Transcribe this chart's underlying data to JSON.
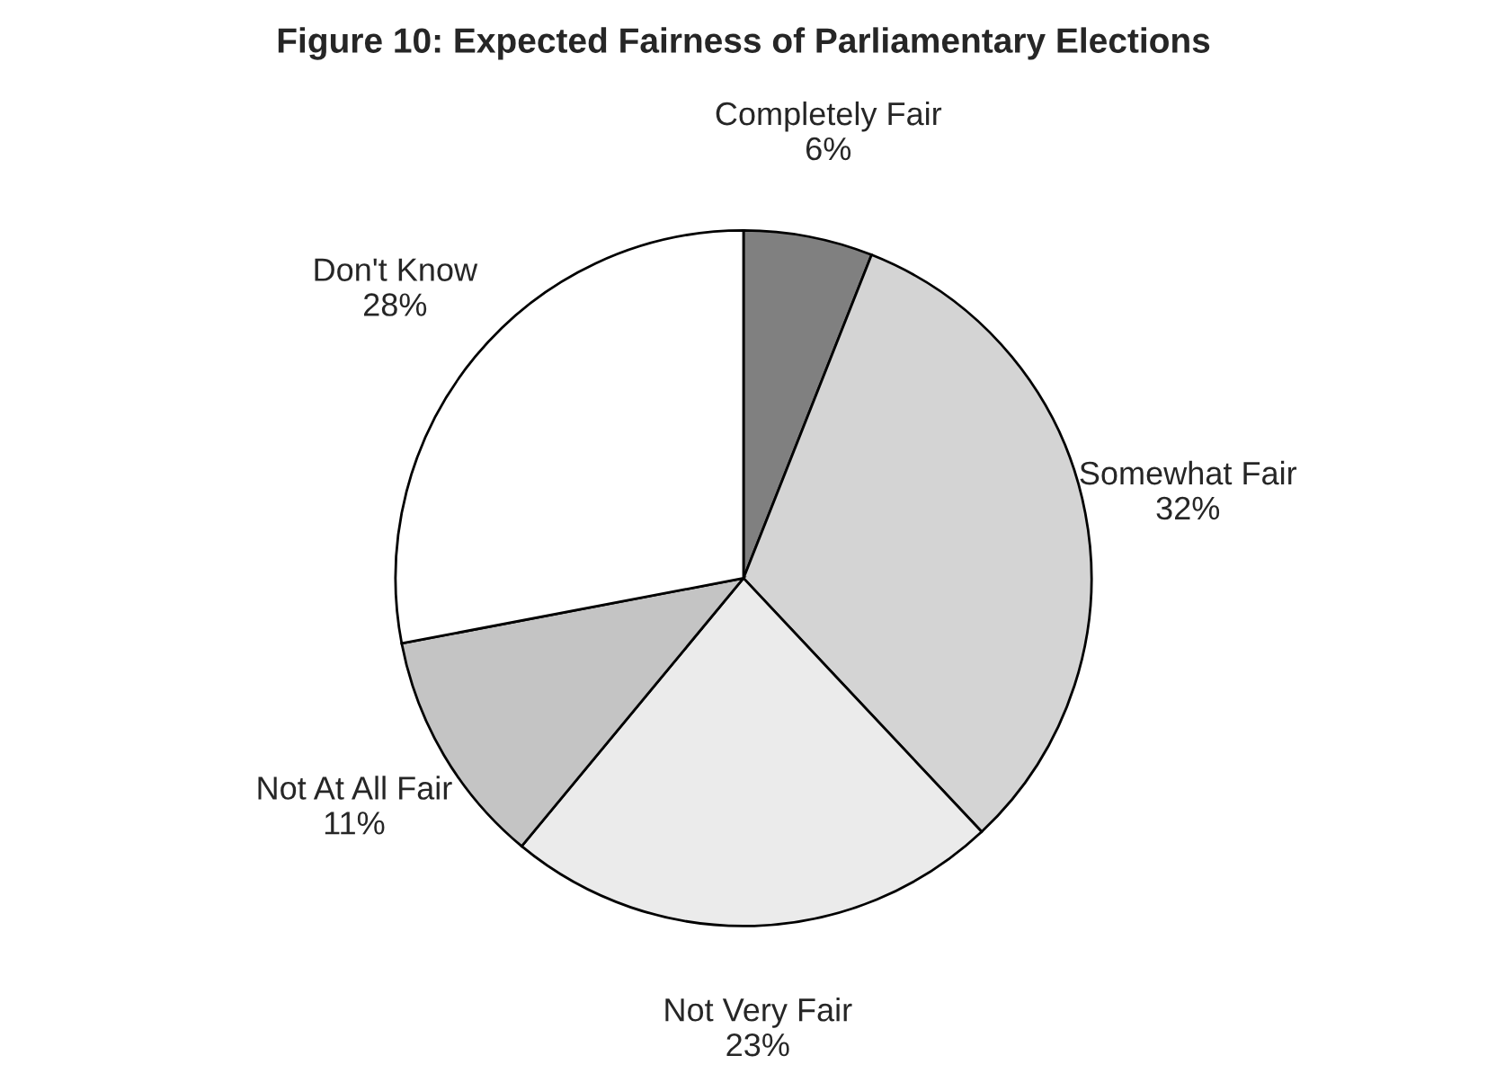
{
  "chart_data": {
    "type": "pie",
    "title": "Figure 10: Expected Fairness of Parliamentary Elections",
    "categories": [
      "Completely Fair",
      "Somewhat Fair",
      "Not Very Fair",
      "Not At All Fair",
      "Don't Know"
    ],
    "values": [
      6,
      32,
      23,
      11,
      28
    ],
    "value_labels": [
      "6%",
      "32%",
      "23%",
      "11%",
      "28%"
    ],
    "colors": [
      "#808080",
      "#d4d4d4",
      "#ebebeb",
      "#c4c4c4",
      "#ffffff"
    ]
  }
}
